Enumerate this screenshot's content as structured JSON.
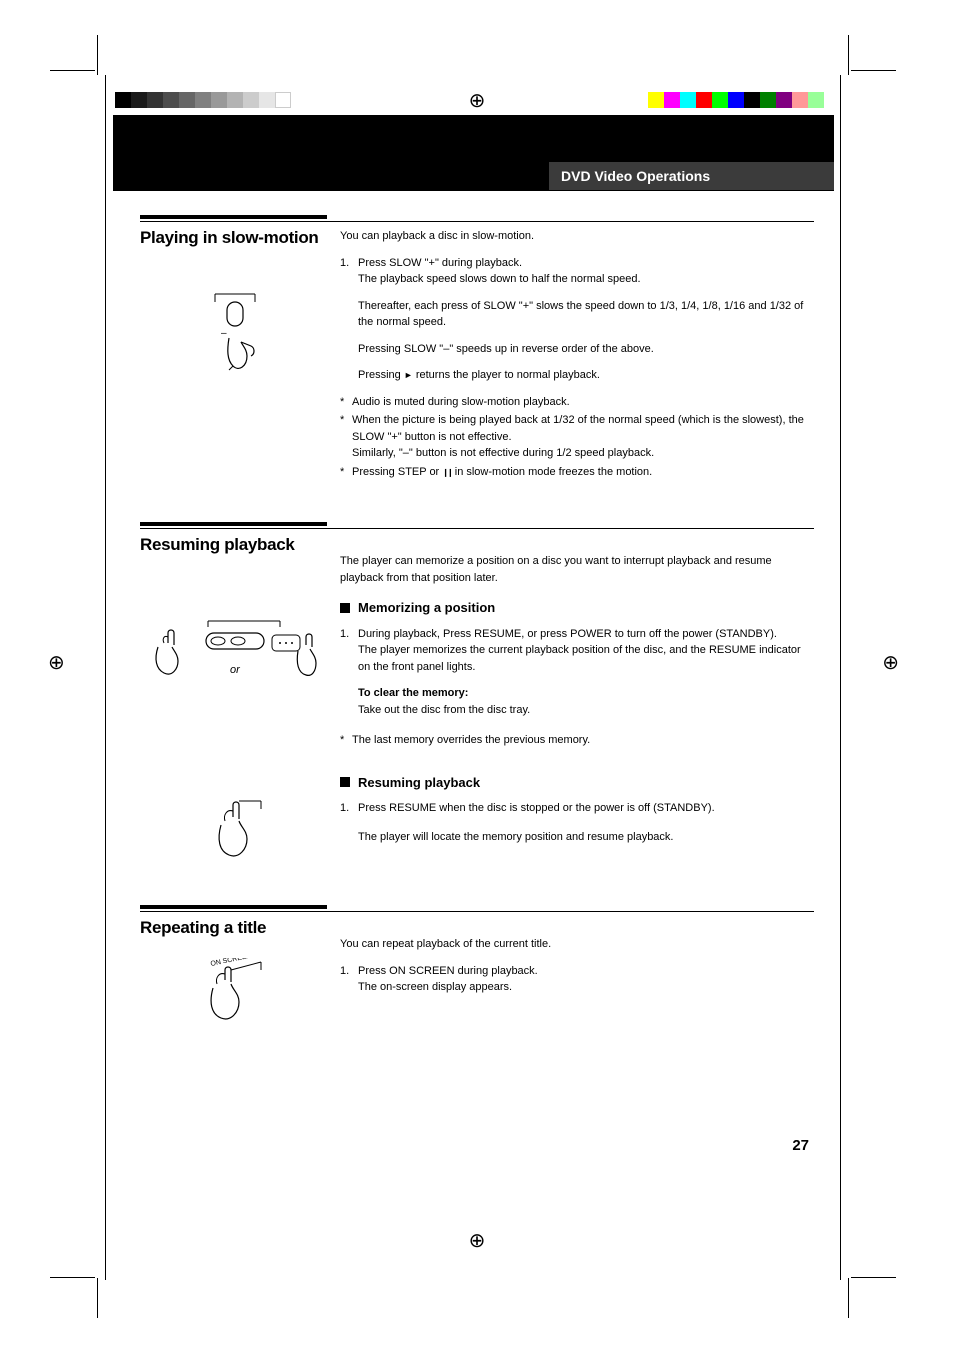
{
  "print_marks": {
    "left_bars": [
      "#000000",
      "#1a1a1a",
      "#333333",
      "#4d4d4d",
      "#666666",
      "#808080",
      "#999999",
      "#b3b3b3",
      "#cccccc",
      "#e6e6e6",
      "#ffffff"
    ],
    "right_bars": [
      "#ffff00",
      "#ff00ff",
      "#00ffff",
      "#ff0000",
      "#00ff00",
      "#0000ff",
      "#000000",
      "#008000",
      "#800080",
      "#ff9999",
      "#99ff99"
    ],
    "reg_glyph": "⊕"
  },
  "header": {
    "tab": "DVD Video Operations"
  },
  "sections": {
    "slow": {
      "title": "Playing in slow-motion",
      "intro": "You can playback a disc in slow-motion.",
      "step1_num": "1.",
      "step1_a": "Press SLOW \"+\" during playback.",
      "step1_b": "The playback speed slows down to half the normal speed.",
      "p2": "Thereafter, each press of SLOW \"+\" slows the speed down to 1/3, 1/4, 1/8, 1/16 and 1/32 of the normal speed.",
      "p3": "Pressing SLOW \"–\" speeds up in reverse order of the above.",
      "p4a": "Pressing ",
      "p4b": " returns the player to normal playback.",
      "note1": "Audio is muted during slow-motion playback.",
      "note2a": "When the picture is being played back at 1/32 of the normal speed (which is the slowest), the SLOW \"+\" button is not effective.",
      "note2b": "Similarly, \"–\" button is not effective during 1/2 speed playback.",
      "note3a": "Pressing STEP or ",
      "note3b": " in slow-motion mode freezes the motion."
    },
    "resume": {
      "title": "Resuming playback",
      "intro": "The player can memorize a position on a disc you want to interrupt playback and resume playback from that position later.",
      "sub1": "Memorizing a position",
      "s1_num": "1.",
      "s1_a": "During playback, Press RESUME, or press POWER to turn off the power (STANDBY).",
      "s1_b": "The player memorizes the current playback position of the disc, and the RESUME indicator on the front panel lights.",
      "clear_h": "To clear the memory:",
      "clear_b": "Take out the disc from the disc tray.",
      "note1": "The last memory overrides the previous memory.",
      "sub2": "Resuming playback",
      "s2_num": "1.",
      "s2_a": "Press RESUME when the disc is stopped or the power is off (STANDBY).",
      "s2_b": "The player will locate the memory position and resume playback.",
      "or": "or"
    },
    "repeat": {
      "title": "Repeating a title",
      "intro": "You can repeat playback of the current title.",
      "s1_num": "1.",
      "s1_a": "Press ON SCREEN during playback.",
      "s1_b": "The on-screen display appears.",
      "btn_label": "ON SCREEN"
    }
  },
  "page_number": "27",
  "icons": {
    "play_glyph": "►",
    "pause_glyph": "❙❙"
  }
}
